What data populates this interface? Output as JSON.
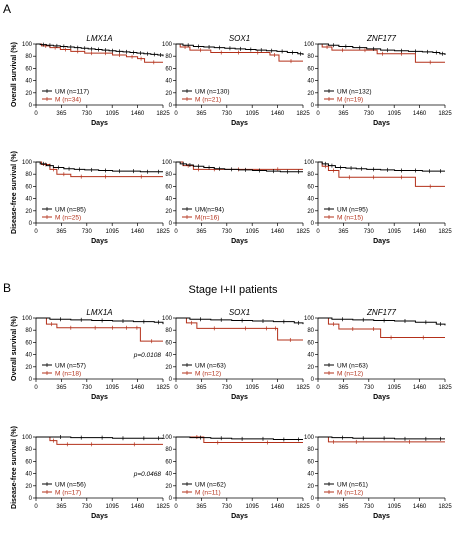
{
  "figure": {
    "panel_a_label": "A",
    "panel_b_label": "B",
    "panel_b_title": "Stage I+II patients"
  },
  "colors": {
    "UM": "#000000",
    "M": "#b3301a"
  },
  "chart_data": [
    {
      "type": "line",
      "panel": "A",
      "gene": "LMX1A",
      "ylabel": "Overall survival (%)",
      "xlabel": "Days",
      "xticks": [
        0,
        365,
        730,
        1095,
        1460,
        1825
      ],
      "yticks": [
        0,
        20,
        40,
        60,
        80,
        100
      ],
      "xlim": [
        0,
        1825
      ],
      "ylim": [
        0,
        100
      ],
      "pvalue": "",
      "legend_position": "bottom-left",
      "series": [
        {
          "name": "UM (n=117)",
          "group": "UM",
          "x": [
            0,
            60,
            150,
            250,
            350,
            450,
            550,
            650,
            750,
            850,
            950,
            1050,
            1150,
            1250,
            1350,
            1450,
            1550,
            1650,
            1750,
            1825
          ],
          "y": [
            100,
            99,
            98,
            97,
            96,
            95,
            94,
            93,
            92,
            91,
            90,
            89,
            88,
            87,
            86,
            85,
            84,
            83,
            82,
            80
          ]
        },
        {
          "name": "M (n=34)",
          "group": "M",
          "x": [
            0,
            80,
            200,
            350,
            500,
            700,
            900,
            1100,
            1300,
            1460,
            1560,
            1825
          ],
          "y": [
            100,
            97,
            94,
            91,
            88,
            85,
            85,
            82,
            79,
            76,
            70,
            70
          ]
        }
      ]
    },
    {
      "type": "line",
      "panel": "A",
      "gene": "SOX1",
      "ylabel": "",
      "xlabel": "Days",
      "xticks": [
        0,
        365,
        730,
        1095,
        1460,
        1825
      ],
      "yticks": [
        0,
        20,
        40,
        60,
        80,
        100
      ],
      "xlim": [
        0,
        1825
      ],
      "ylim": [
        0,
        100
      ],
      "pvalue": "",
      "legend_position": "bottom-left",
      "series": [
        {
          "name": "UM (n=130)",
          "group": "UM",
          "x": [
            0,
            100,
            250,
            400,
            550,
            700,
            850,
            1000,
            1150,
            1300,
            1450,
            1600,
            1750,
            1825
          ],
          "y": [
            100,
            98,
            96,
            95,
            94,
            93,
            92,
            91,
            90,
            89,
            88,
            86,
            84,
            82
          ]
        },
        {
          "name": "M (n=21)",
          "group": "M",
          "x": [
            0,
            60,
            200,
            500,
            800,
            1000,
            1350,
            1480,
            1825
          ],
          "y": [
            100,
            95,
            90,
            86,
            86,
            86,
            82,
            72,
            72
          ]
        }
      ]
    },
    {
      "type": "line",
      "panel": "A",
      "gene": "ZNF177",
      "ylabel": "",
      "xlabel": "Days",
      "xticks": [
        0,
        365,
        730,
        1095,
        1460,
        1825
      ],
      "yticks": [
        0,
        20,
        40,
        60,
        80,
        100
      ],
      "xlim": [
        0,
        1825
      ],
      "ylim": [
        0,
        100
      ],
      "pvalue": "",
      "legend_position": "bottom-left",
      "series": [
        {
          "name": "UM (n=132)",
          "group": "UM",
          "x": [
            0,
            150,
            300,
            500,
            700,
            900,
            1100,
            1300,
            1500,
            1650,
            1750,
            1825
          ],
          "y": [
            100,
            98,
            96,
            94,
            92,
            90,
            89,
            88,
            87,
            86,
            84,
            82
          ]
        },
        {
          "name": "M (n=19)",
          "group": "M",
          "x": [
            0,
            60,
            200,
            500,
            850,
            1000,
            1400,
            1825
          ],
          "y": [
            100,
            95,
            90,
            90,
            84,
            84,
            70,
            70
          ]
        }
      ]
    },
    {
      "type": "line",
      "panel": "A",
      "gene": "",
      "ylabel": "Disease-free survival (%)",
      "xlabel": "Days",
      "xticks": [
        0,
        365,
        730,
        1095,
        1460,
        1825
      ],
      "yticks": [
        0,
        20,
        40,
        60,
        80,
        100
      ],
      "xlim": [
        0,
        1825
      ],
      "ylim": [
        0,
        100
      ],
      "pvalue": "",
      "legend_position": "bottom-left",
      "series": [
        {
          "name": "UM (n=85)",
          "group": "UM",
          "x": [
            0,
            60,
            150,
            250,
            400,
            550,
            700,
            900,
            1100,
            1300,
            1500,
            1700,
            1825
          ],
          "y": [
            100,
            97,
            94,
            91,
            89,
            88,
            87,
            86,
            85,
            85,
            84,
            84,
            84
          ]
        },
        {
          "name": "M (n=25)",
          "group": "M",
          "x": [
            0,
            80,
            200,
            300,
            500,
            800,
            1200,
            1825
          ],
          "y": [
            100,
            96,
            88,
            80,
            76,
            76,
            76,
            76
          ]
        }
      ]
    },
    {
      "type": "line",
      "panel": "A",
      "gene": "",
      "ylabel": "",
      "xlabel": "Days",
      "xticks": [
        0,
        365,
        730,
        1095,
        1460,
        1825
      ],
      "yticks": [
        0,
        20,
        40,
        60,
        80,
        100
      ],
      "xlim": [
        0,
        1825
      ],
      "ylim": [
        0,
        100
      ],
      "pvalue": "",
      "legend_position": "bottom-left",
      "series": [
        {
          "name": "UM(n=94)",
          "group": "UM",
          "x": [
            0,
            60,
            150,
            250,
            400,
            550,
            700,
            900,
            1100,
            1300,
            1500,
            1700,
            1825
          ],
          "y": [
            100,
            97,
            95,
            93,
            91,
            89,
            88,
            87,
            86,
            85,
            84,
            84,
            84
          ]
        },
        {
          "name": "M(n=16)",
          "group": "M",
          "x": [
            0,
            100,
            250,
            400,
            700,
            1100,
            1825
          ],
          "y": [
            100,
            94,
            88,
            88,
            88,
            88,
            88
          ]
        }
      ]
    },
    {
      "type": "line",
      "panel": "A",
      "gene": "",
      "ylabel": "",
      "xlabel": "Days",
      "xticks": [
        0,
        365,
        730,
        1095,
        1460,
        1825
      ],
      "yticks": [
        0,
        20,
        40,
        60,
        80,
        100
      ],
      "xlim": [
        0,
        1825
      ],
      "ylim": [
        0,
        100
      ],
      "pvalue": "",
      "legend_position": "bottom-left",
      "series": [
        {
          "name": "UM (n=95)",
          "group": "UM",
          "x": [
            0,
            60,
            150,
            250,
            400,
            550,
            700,
            900,
            1100,
            1300,
            1500,
            1700,
            1825
          ],
          "y": [
            100,
            97,
            94,
            91,
            90,
            89,
            88,
            87,
            86,
            86,
            85,
            85,
            85
          ]
        },
        {
          "name": "M (n=15)",
          "group": "M",
          "x": [
            0,
            60,
            150,
            300,
            600,
            1000,
            1400,
            1825
          ],
          "y": [
            100,
            93,
            86,
            75,
            75,
            75,
            60,
            60
          ]
        }
      ]
    },
    {
      "type": "line",
      "panel": "B",
      "gene": "LMX1A",
      "ylabel": "Overall survival (%)",
      "xlabel": "Days",
      "xticks": [
        0,
        365,
        730,
        1095,
        1460,
        1825
      ],
      "yticks": [
        0,
        20,
        40,
        60,
        80,
        100
      ],
      "xlim": [
        0,
        1825
      ],
      "ylim": [
        0,
        100
      ],
      "pvalue": "p=0.0108",
      "legend_position": "bottom-left",
      "series": [
        {
          "name": "UM (n=57)",
          "group": "UM",
          "x": [
            0,
            200,
            500,
            800,
            1100,
            1400,
            1700,
            1825
          ],
          "y": [
            100,
            98,
            97,
            96,
            95,
            94,
            93,
            90
          ]
        },
        {
          "name": "M (n=18)",
          "group": "M",
          "x": [
            0,
            150,
            300,
            700,
            1000,
            1200,
            1400,
            1500,
            1825
          ],
          "y": [
            100,
            90,
            84,
            84,
            84,
            84,
            84,
            62,
            62
          ]
        }
      ]
    },
    {
      "type": "line",
      "panel": "B",
      "gene": "SOX1",
      "ylabel": "",
      "xlabel": "Days",
      "xticks": [
        0,
        365,
        730,
        1095,
        1460,
        1825
      ],
      "yticks": [
        0,
        20,
        40,
        60,
        80,
        100
      ],
      "xlim": [
        0,
        1825
      ],
      "ylim": [
        0,
        100
      ],
      "pvalue": "",
      "legend_position": "bottom-left",
      "series": [
        {
          "name": "UM (n=63)",
          "group": "UM",
          "x": [
            0,
            200,
            500,
            800,
            1100,
            1400,
            1700,
            1825
          ],
          "y": [
            100,
            98,
            97,
            96,
            95,
            94,
            92,
            90
          ]
        },
        {
          "name": "M (n=12)",
          "group": "M",
          "x": [
            0,
            150,
            300,
            800,
            1200,
            1400,
            1460,
            1825
          ],
          "y": [
            100,
            92,
            83,
            83,
            83,
            83,
            64,
            64
          ]
        }
      ]
    },
    {
      "type": "line",
      "panel": "B",
      "gene": "ZNF177",
      "ylabel": "",
      "xlabel": "Days",
      "xticks": [
        0,
        365,
        730,
        1095,
        1460,
        1825
      ],
      "yticks": [
        0,
        20,
        40,
        60,
        80,
        100
      ],
      "xlim": [
        0,
        1825
      ],
      "ylim": [
        0,
        100
      ],
      "pvalue": "",
      "legend_position": "bottom-left",
      "series": [
        {
          "name": "UM (n=63)",
          "group": "UM",
          "x": [
            0,
            200,
            500,
            800,
            1100,
            1400,
            1700,
            1825
          ],
          "y": [
            100,
            98,
            97,
            96,
            95,
            93,
            90,
            88
          ]
        },
        {
          "name": "M (n=12)",
          "group": "M",
          "x": [
            0,
            150,
            300,
            700,
            900,
            1200,
            1825
          ],
          "y": [
            100,
            90,
            82,
            82,
            68,
            68,
            68
          ]
        }
      ]
    },
    {
      "type": "line",
      "panel": "B",
      "gene": "",
      "ylabel": "Disease-free survival (%)",
      "xlabel": "Days",
      "xticks": [
        0,
        365,
        730,
        1095,
        1460,
        1825
      ],
      "yticks": [
        0,
        20,
        40,
        60,
        80,
        100
      ],
      "xlim": [
        0,
        1825
      ],
      "ylim": [
        0,
        100
      ],
      "pvalue": "p=0.0468",
      "legend_position": "bottom-left",
      "series": [
        {
          "name": "UM (n=56)",
          "group": "UM",
          "x": [
            0,
            200,
            500,
            800,
            1100,
            1400,
            1700,
            1825
          ],
          "y": [
            100,
            100,
            99,
            99,
            98,
            98,
            98,
            98
          ]
        },
        {
          "name": "M (n=17)",
          "group": "M",
          "x": [
            0,
            200,
            300,
            600,
            1000,
            1825
          ],
          "y": [
            100,
            94,
            88,
            88,
            88,
            88
          ]
        }
      ]
    },
    {
      "type": "line",
      "panel": "B",
      "gene": "",
      "ylabel": "",
      "xlabel": "Days",
      "xticks": [
        0,
        365,
        730,
        1095,
        1460,
        1825
      ],
      "yticks": [
        0,
        20,
        40,
        60,
        80,
        100
      ],
      "xlim": [
        0,
        1825
      ],
      "ylim": [
        0,
        100
      ],
      "pvalue": "",
      "legend_position": "bottom-left",
      "series": [
        {
          "name": "UM (n=62)",
          "group": "UM",
          "x": [
            0,
            200,
            500,
            800,
            1100,
            1400,
            1700,
            1825
          ],
          "y": [
            100,
            99,
            98,
            97,
            97,
            96,
            96,
            96
          ]
        },
        {
          "name": "M (n=11)",
          "group": "M",
          "x": [
            0,
            200,
            400,
            800,
            1825
          ],
          "y": [
            100,
            100,
            91,
            91,
            91
          ]
        }
      ]
    },
    {
      "type": "line",
      "panel": "B",
      "gene": "",
      "ylabel": "",
      "xlabel": "Days",
      "xticks": [
        0,
        365,
        730,
        1095,
        1460,
        1825
      ],
      "yticks": [
        0,
        20,
        40,
        60,
        80,
        100
      ],
      "xlim": [
        0,
        1825
      ],
      "ylim": [
        0,
        100
      ],
      "pvalue": "",
      "legend_position": "bottom-left",
      "series": [
        {
          "name": "UM (n=61)",
          "group": "UM",
          "x": [
            0,
            200,
            500,
            800,
            1100,
            1400,
            1700,
            1825
          ],
          "y": [
            100,
            99,
            98,
            98,
            97,
            97,
            97,
            97
          ]
        },
        {
          "name": "M (n=12)",
          "group": "M",
          "x": [
            0,
            150,
            300,
            800,
            1825
          ],
          "y": [
            100,
            92,
            92,
            92,
            92
          ]
        }
      ]
    }
  ]
}
